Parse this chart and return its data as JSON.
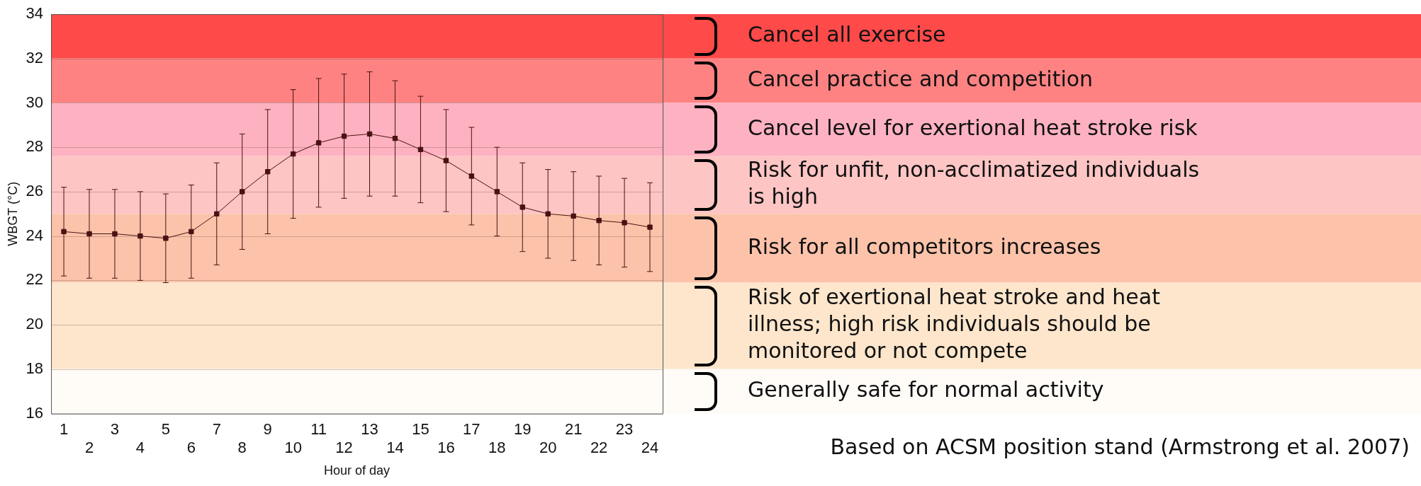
{
  "chart_data": {
    "type": "line",
    "xlabel": "Hour of day",
    "ylabel": "WBGT (°C)",
    "categories": [
      "1",
      "2",
      "3",
      "4",
      "5",
      "6",
      "7",
      "8",
      "9",
      "10",
      "11",
      "12",
      "13",
      "14",
      "15",
      "16",
      "17",
      "18",
      "19",
      "20",
      "21",
      "22",
      "23",
      "24"
    ],
    "series": [
      {
        "color": "#4a1212",
        "values": [
          24.2,
          24.1,
          24.1,
          24.0,
          23.9,
          24.2,
          25.0,
          26.0,
          26.9,
          27.7,
          28.2,
          28.5,
          28.6,
          28.4,
          27.9,
          27.4,
          26.7,
          26.0,
          25.3,
          25.0,
          24.9,
          24.7,
          24.6,
          24.4
        ],
        "errors": [
          2.0,
          2.0,
          2.0,
          2.0,
          2.0,
          2.1,
          2.3,
          2.6,
          2.8,
          2.9,
          2.9,
          2.8,
          2.8,
          2.6,
          2.4,
          2.3,
          2.2,
          2.0,
          2.0,
          2.0,
          2.0,
          2.0,
          2.0,
          2.0
        ]
      }
    ],
    "ylim": [
      16,
      34
    ],
    "yticks": [
      16,
      18,
      20,
      22,
      24,
      26,
      28,
      30,
      32,
      34
    ],
    "grid": "y",
    "legend": false,
    "marker": "square",
    "line_style": "solid",
    "bands": [
      {
        "axis": "y",
        "from": 32,
        "to": 34,
        "label": "Cancel all exercise",
        "color": "#ff4a4a"
      },
      {
        "axis": "y",
        "from": 30,
        "to": 32,
        "label": "Cancel practice and competition",
        "color": "#ff8282"
      },
      {
        "axis": "y",
        "from": 27.6,
        "to": 30,
        "label": "Cancel level for exertional heat stroke risk",
        "color": "#feb2c1"
      },
      {
        "axis": "y",
        "from": 25,
        "to": 27.6,
        "label": "Risk for unfit, non-acclimatized individuals is high",
        "color": "#fdc5c4"
      },
      {
        "axis": "y",
        "from": 21.9,
        "to": 25,
        "label": "Risk for all competitors increases",
        "color": "#fcc3aa"
      },
      {
        "axis": "y",
        "from": 18,
        "to": 21.9,
        "label": "Risk of exertional heat stroke and heat illness; high risk individuals should be monitored or not compete",
        "color": "#fde6cc"
      },
      {
        "axis": "y",
        "from": 16,
        "to": 18,
        "label": "Generally safe for normal activity",
        "color": "#fffcf8"
      }
    ],
    "annotations": [
      "Based on ACSM position stand (Armstrong et al. 2007)"
    ]
  }
}
